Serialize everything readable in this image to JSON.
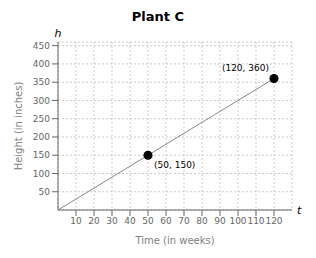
{
  "chart_data": {
    "type": "line",
    "title": "Plant C",
    "xlabel": "Time (in weeks)",
    "ylabel": "Height (in inches)",
    "xlim": [
      0,
      130
    ],
    "ylim": [
      0,
      460
    ],
    "xticks": [
      10,
      20,
      30,
      40,
      50,
      60,
      70,
      80,
      90,
      100,
      110,
      120
    ],
    "yticks": [
      50,
      100,
      150,
      200,
      250,
      300,
      350,
      400,
      450
    ],
    "grid": true,
    "series": [
      {
        "type": "line",
        "color": "#888888",
        "x": [
          0,
          120
        ],
        "values": [
          0,
          360
        ]
      },
      {
        "type": "scatter",
        "color": "#000000",
        "marker": "o",
        "data_labels": true,
        "x": [
          50,
          120
        ],
        "values": [
          150,
          360
        ],
        "value_labels": [
          "(50, 150)",
          "(120, 360)"
        ]
      }
    ],
    "annotations": [
      {
        "text": "h",
        "x": 0,
        "y": 460
      },
      {
        "text": "t",
        "x": 130,
        "y": 0
      }
    ]
  }
}
